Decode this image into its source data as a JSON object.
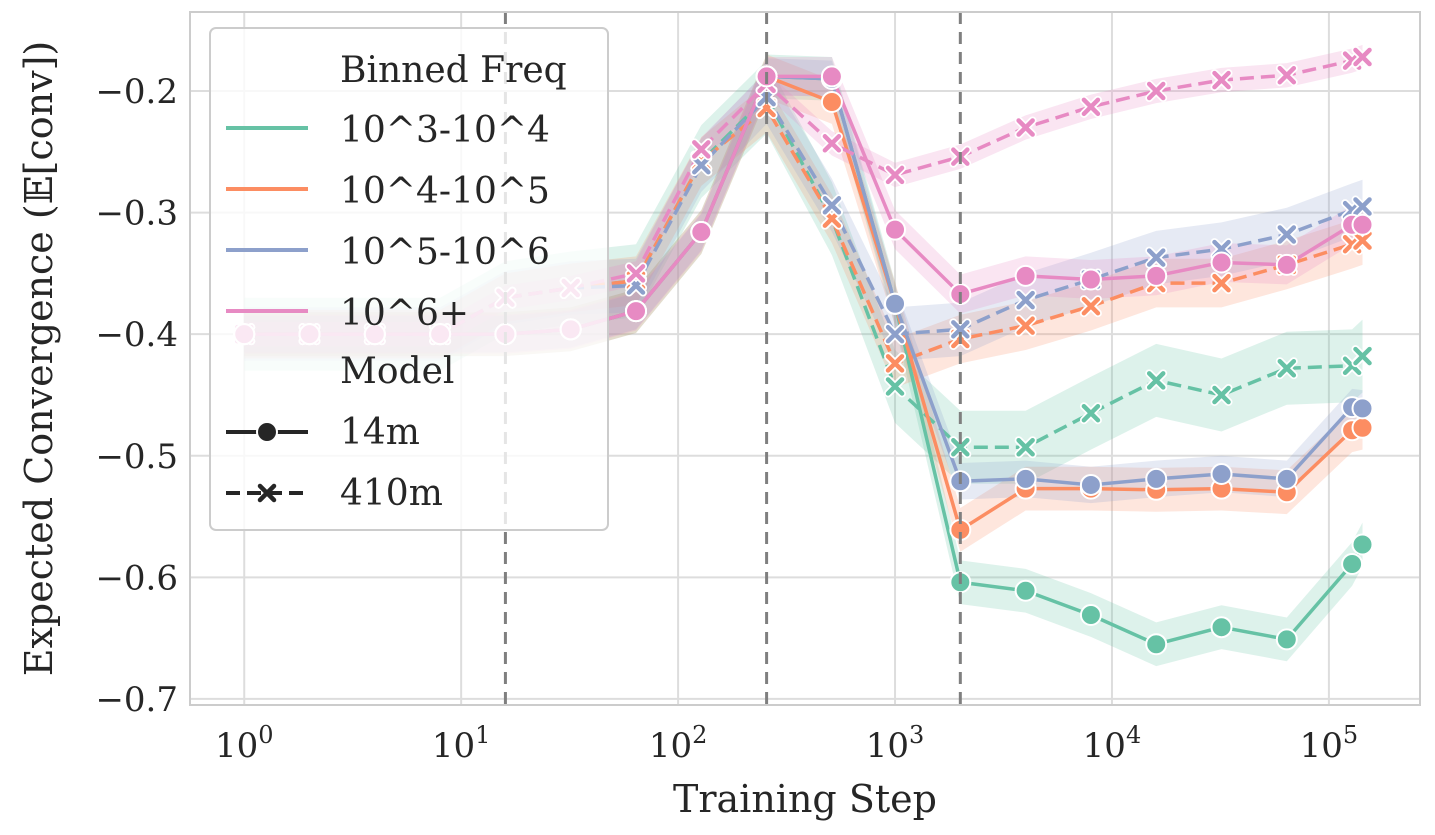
{
  "chart_data": {
    "type": "line",
    "title": "",
    "xlabel": "Training Step",
    "ylabel": "Expected Convergence (𝔼[conv])",
    "xscale": "log",
    "x_log10_range": [
      -0.25,
      5.42
    ],
    "ylim": [
      -0.705,
      -0.135
    ],
    "grid": true,
    "y_ticks": [
      -0.2,
      -0.3,
      -0.4,
      -0.5,
      -0.6,
      -0.7
    ],
    "y_tick_labels": [
      "−0.2",
      "−0.3",
      "−0.4",
      "−0.5",
      "−0.6",
      "−0.7"
    ],
    "x_ticks": [
      {
        "log": 0,
        "base": "10",
        "exp": "0"
      },
      {
        "log": 1,
        "base": "10",
        "exp": "1"
      },
      {
        "log": 2,
        "base": "10",
        "exp": "2"
      },
      {
        "log": 3,
        "base": "10",
        "exp": "3"
      },
      {
        "log": 4,
        "base": "10",
        "exp": "4"
      },
      {
        "log": 5,
        "base": "10",
        "exp": "5"
      }
    ],
    "vertical_dashed_lines_log10": [
      1.204,
      2.408,
      3.301
    ],
    "legend": {
      "placement": "upper-left",
      "binned_title": "Binned Freq",
      "model_title": "Model",
      "model_entries": [
        {
          "label": "14m",
          "marker": "circle",
          "dash": "solid"
        },
        {
          "label": "410m",
          "marker": "x",
          "dash": "dashed"
        }
      ]
    },
    "series": [
      {
        "name": "10^3-10^4",
        "color": "#66c2a5",
        "model_14m": {
          "x": [
            0,
            0.301,
            0.602,
            0.903,
            1.204,
            1.505,
            1.806,
            2.107,
            2.408,
            2.709,
            3.0,
            3.301,
            3.602,
            3.903,
            4.204,
            4.505,
            4.806,
            5.107,
            5.155
          ],
          "y": [
            -0.4,
            -0.4,
            -0.4,
            -0.4,
            -0.4,
            -0.396,
            -0.381,
            -0.316,
            -0.188,
            -0.19,
            -0.375,
            -0.604,
            -0.611,
            -0.631,
            -0.655,
            -0.641,
            -0.651,
            -0.589,
            -0.573
          ],
          "band": 0.018
        },
        "model_410m": {
          "x": [
            0,
            0.301,
            0.602,
            0.903,
            1.204,
            1.505,
            1.806,
            2.107,
            2.408,
            2.709,
            3.0,
            3.301,
            3.602,
            3.903,
            4.204,
            4.505,
            4.806,
            5.107,
            5.155
          ],
          "y": [
            -0.4,
            -0.4,
            -0.4,
            -0.4,
            -0.37,
            -0.362,
            -0.356,
            -0.258,
            -0.205,
            -0.305,
            -0.443,
            -0.493,
            -0.493,
            -0.465,
            -0.438,
            -0.45,
            -0.428,
            -0.426,
            -0.418
          ],
          "band": 0.03
        }
      },
      {
        "name": "10^4-10^5",
        "color": "#fc8d62",
        "model_14m": {
          "x": [
            0,
            0.301,
            0.602,
            0.903,
            1.204,
            1.505,
            1.806,
            2.107,
            2.408,
            2.709,
            3.0,
            3.301,
            3.602,
            3.903,
            4.204,
            4.505,
            4.806,
            5.107,
            5.155
          ],
          "y": [
            -0.4,
            -0.4,
            -0.4,
            -0.4,
            -0.4,
            -0.396,
            -0.381,
            -0.316,
            -0.188,
            -0.209,
            -0.375,
            -0.561,
            -0.527,
            -0.527,
            -0.528,
            -0.527,
            -0.53,
            -0.479,
            -0.477
          ],
          "band": 0.018
        },
        "model_410m": {
          "x": [
            0,
            0.301,
            0.602,
            0.903,
            1.204,
            1.505,
            1.806,
            2.107,
            2.408,
            2.709,
            3.0,
            3.301,
            3.602,
            3.903,
            4.204,
            4.505,
            4.806,
            5.107,
            5.155
          ],
          "y": [
            -0.4,
            -0.4,
            -0.4,
            -0.4,
            -0.37,
            -0.362,
            -0.356,
            -0.258,
            -0.214,
            -0.305,
            -0.424,
            -0.404,
            -0.393,
            -0.377,
            -0.358,
            -0.358,
            -0.343,
            -0.326,
            -0.323
          ],
          "band": 0.02
        }
      },
      {
        "name": "10^5-10^6",
        "color": "#8da0cb",
        "model_14m": {
          "x": [
            0,
            0.301,
            0.602,
            0.903,
            1.204,
            1.505,
            1.806,
            2.107,
            2.408,
            2.709,
            3.0,
            3.301,
            3.602,
            3.903,
            4.204,
            4.505,
            4.806,
            5.107,
            5.155
          ],
          "y": [
            -0.4,
            -0.4,
            -0.4,
            -0.4,
            -0.4,
            -0.396,
            -0.381,
            -0.316,
            -0.188,
            -0.19,
            -0.375,
            -0.521,
            -0.519,
            -0.524,
            -0.519,
            -0.515,
            -0.519,
            -0.46,
            -0.461
          ],
          "band": 0.015
        },
        "model_410m": {
          "x": [
            0,
            0.301,
            0.602,
            0.903,
            1.204,
            1.505,
            1.806,
            2.107,
            2.408,
            2.709,
            3.0,
            3.301,
            3.602,
            3.903,
            4.204,
            4.505,
            4.806,
            5.107,
            5.155
          ],
          "y": [
            -0.4,
            -0.4,
            -0.4,
            -0.4,
            -0.37,
            -0.362,
            -0.36,
            -0.261,
            -0.205,
            -0.294,
            -0.4,
            -0.396,
            -0.372,
            -0.355,
            -0.337,
            -0.33,
            -0.318,
            -0.298,
            -0.295
          ],
          "band": 0.022
        }
      },
      {
        "name": "10^6+",
        "color": "#e78ac3",
        "model_14m": {
          "x": [
            0,
            0.301,
            0.602,
            0.903,
            1.204,
            1.505,
            1.806,
            2.107,
            2.408,
            2.709,
            3.0,
            3.301,
            3.602,
            3.903,
            4.204,
            4.505,
            4.806,
            5.107,
            5.155
          ],
          "y": [
            -0.4,
            -0.4,
            -0.4,
            -0.4,
            -0.4,
            -0.396,
            -0.381,
            -0.316,
            -0.188,
            -0.188,
            -0.314,
            -0.367,
            -0.352,
            -0.355,
            -0.352,
            -0.341,
            -0.343,
            -0.31,
            -0.31
          ],
          "band": 0.016
        },
        "model_410m": {
          "x": [
            0,
            0.301,
            0.602,
            0.903,
            1.204,
            1.505,
            1.806,
            2.107,
            2.408,
            2.709,
            3.0,
            3.301,
            3.602,
            3.903,
            4.204,
            4.505,
            4.806,
            5.107,
            5.155
          ],
          "y": [
            -0.4,
            -0.4,
            -0.4,
            -0.4,
            -0.37,
            -0.362,
            -0.35,
            -0.248,
            -0.194,
            -0.243,
            -0.269,
            -0.254,
            -0.23,
            -0.213,
            -0.2,
            -0.191,
            -0.187,
            -0.175,
            -0.172
          ],
          "band": 0.01
        }
      }
    ]
  }
}
